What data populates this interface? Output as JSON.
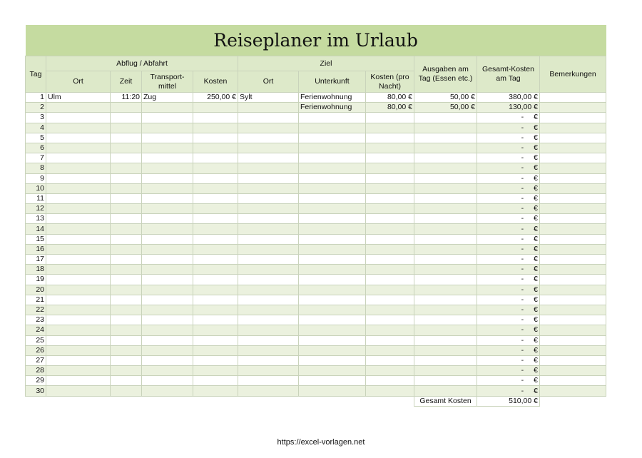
{
  "title": "Reiseplaner im Urlaub",
  "headers": {
    "tag": "Tag",
    "abflug": "Abflug / Abfahrt",
    "ziel": "Ziel",
    "ort": "Ort",
    "zeit": "Zeit",
    "transport": "Transport-mittel",
    "kosten": "Kosten",
    "ziel_ort": "Ort",
    "unterkunft": "Unterkunft",
    "kosten_nacht": "Kosten (pro Nacht)",
    "ausgaben": "Ausgaben am Tag (Essen etc.)",
    "gesamt": "Gesamt-Kosten am Tag",
    "bemerkungen": "Bemerkungen"
  },
  "rows": [
    {
      "tag": "1",
      "ort": "Ulm",
      "zeit": "11:20",
      "transport": "Zug",
      "kosten": "250,00 €",
      "ziel_ort": "Sylt",
      "unterkunft": "Ferienwohnung",
      "kosten_nacht": "80,00 €",
      "ausgaben": "50,00 €",
      "gesamt": "380,00 €"
    },
    {
      "tag": "2",
      "unterkunft": "Ferienwohnung",
      "kosten_nacht": "80,00 €",
      "ausgaben": "50,00 €",
      "gesamt": "130,00 €"
    },
    {
      "tag": "3",
      "gesamt": "-"
    },
    {
      "tag": "4",
      "gesamt": "-"
    },
    {
      "tag": "5",
      "gesamt": "-"
    },
    {
      "tag": "6",
      "gesamt": "-"
    },
    {
      "tag": "7",
      "gesamt": "-"
    },
    {
      "tag": "8",
      "gesamt": "-"
    },
    {
      "tag": "9",
      "gesamt": "-"
    },
    {
      "tag": "10",
      "gesamt": "-"
    },
    {
      "tag": "11",
      "gesamt": "-"
    },
    {
      "tag": "12",
      "gesamt": "-"
    },
    {
      "tag": "13",
      "gesamt": "-"
    },
    {
      "tag": "14",
      "gesamt": "-"
    },
    {
      "tag": "15",
      "gesamt": "-"
    },
    {
      "tag": "16",
      "gesamt": "-"
    },
    {
      "tag": "17",
      "gesamt": "-"
    },
    {
      "tag": "18",
      "gesamt": "-"
    },
    {
      "tag": "19",
      "gesamt": "-"
    },
    {
      "tag": "20",
      "gesamt": "-"
    },
    {
      "tag": "21",
      "gesamt": "-"
    },
    {
      "tag": "22",
      "gesamt": "-"
    },
    {
      "tag": "23",
      "gesamt": "-"
    },
    {
      "tag": "24",
      "gesamt": "-"
    },
    {
      "tag": "25",
      "gesamt": "-"
    },
    {
      "tag": "26",
      "gesamt": "-"
    },
    {
      "tag": "27",
      "gesamt": "-"
    },
    {
      "tag": "28",
      "gesamt": "-"
    },
    {
      "tag": "29",
      "gesamt": "-"
    },
    {
      "tag": "30",
      "gesamt": "-"
    }
  ],
  "euro": "€",
  "total": {
    "label": "Gesamt Kosten",
    "value": "510,00 €"
  },
  "footer": "https://excel-vorlagen.net",
  "colors": {
    "title_bg": "#c5dba0",
    "header_bg": "#dde9c9",
    "alt_row": "#ebf1de"
  }
}
